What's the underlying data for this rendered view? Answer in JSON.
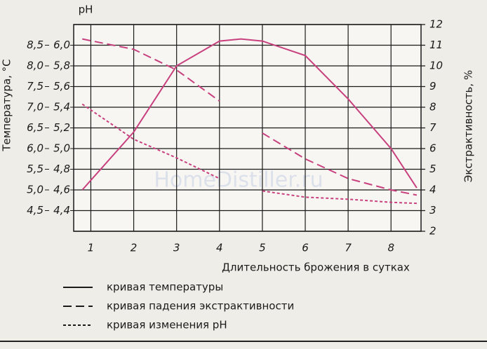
{
  "chart_data": {
    "type": "line",
    "y_label_top": "pH",
    "ylabel": "Температура, °С",
    "y2label": "Экстрактивность, %",
    "xlabel": "Длительность брожения в сутках",
    "watermark": "HomeDistiller.ru",
    "grid": true,
    "x": [
      0.8,
      2,
      3,
      4,
      4.5,
      5,
      6,
      7,
      8,
      8.6
    ],
    "xlim": [
      0.6,
      8.7
    ],
    "xticks": [
      1,
      2,
      3,
      4,
      5,
      6,
      7,
      8
    ],
    "ylim": [
      4.0,
      9.0
    ],
    "yticks": [
      {
        "value": 4.5,
        "label": "4,5"
      },
      {
        "value": 5.0,
        "label": "5,0"
      },
      {
        "value": 5.5,
        "label": "5,5"
      },
      {
        "value": 6.0,
        "label": "6,0"
      },
      {
        "value": 6.5,
        "label": "6,5"
      },
      {
        "value": 7.0,
        "label": "7,0"
      },
      {
        "value": 7.5,
        "label": "7,5"
      },
      {
        "value": 8.0,
        "label": "8,0"
      },
      {
        "value": 8.5,
        "label": "8,5"
      }
    ],
    "y3lim": [
      4.2,
      6.2
    ],
    "y3ticks": [
      {
        "value": 4.4,
        "label": "4,4"
      },
      {
        "value": 4.6,
        "label": "4,6"
      },
      {
        "value": 4.8,
        "label": "4,8"
      },
      {
        "value": 5.0,
        "label": "5,0"
      },
      {
        "value": 5.2,
        "label": "5,2"
      },
      {
        "value": 5.4,
        "label": "5,4"
      },
      {
        "value": 5.6,
        "label": "5,6"
      },
      {
        "value": 5.8,
        "label": "5,8"
      },
      {
        "value": 6.0,
        "label": "6,0"
      }
    ],
    "y2lim": [
      2,
      12
    ],
    "y2ticks": [
      2,
      3,
      4,
      5,
      6,
      7,
      8,
      9,
      10,
      11,
      12
    ],
    "series": [
      {
        "name": "кривая температуры",
        "color": "#c8407e",
        "dash": "solid",
        "axis": "y",
        "values": [
          5.0,
          6.4,
          8.0,
          8.6,
          8.65,
          8.6,
          8.25,
          7.2,
          6.0,
          5.05
        ]
      },
      {
        "name": "кривая падения экстрактивности",
        "color": "#c8407e",
        "dash": "dashed",
        "axis": "y2",
        "values": [
          11.3,
          10.8,
          9.8,
          8.3,
          null,
          6.75,
          5.5,
          4.55,
          4.0,
          3.75
        ]
      },
      {
        "name": "кривая изменения pH",
        "color": "#c8407e",
        "dash": "dotted",
        "axis": "y3",
        "values": [
          5.43,
          5.09,
          4.91,
          4.71,
          null,
          4.59,
          4.53,
          4.51,
          4.48,
          4.47
        ]
      }
    ]
  }
}
